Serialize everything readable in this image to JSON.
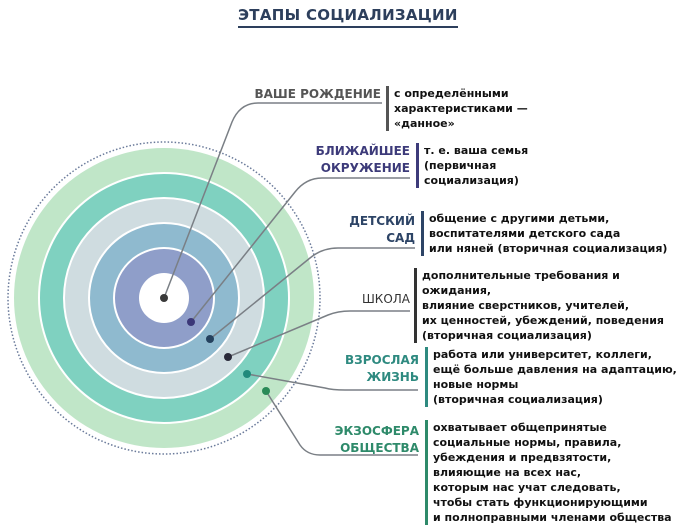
{
  "title": "ЭТАПЫ СОЦИАЛИЗАЦИИ",
  "colors": {
    "title": "#2d3f5c",
    "ring_outer": "#c0e6c8",
    "ring_teal": "#7fd1c0",
    "ring_gray": "#cfdce0",
    "ring_blue": "#8fbacf",
    "ring_purple": "#8f9ec9",
    "connector": "#7a7f85"
  },
  "stages": [
    {
      "label": "ВАШЕ РОЖДЕНИЕ",
      "description": "с определёнными\nхарактеристиками —\n«данное»",
      "color": "#555555"
    },
    {
      "label": "БЛИЖАЙШЕЕ\nОКРУЖЕНИЕ",
      "description": "т. е. ваша семья\n(первичная\nсоциализация)",
      "color": "#3d3b7a"
    },
    {
      "label": "ДЕТСКИЙ\nСАД",
      "description": "общение с другими детьми,\nвоспитателями детского сада\nили няней (вторичная социализация)",
      "color": "#2d4466"
    },
    {
      "label": "ШКОЛА",
      "description": "дополнительные требования и ожидания,\nвлияние сверстников, учителей,\nих ценностей, убеждений, поведения\n(вторичная социализация)",
      "color": "#333333"
    },
    {
      "label": "ВЗРОСЛАЯ\nЖИЗНЬ",
      "description": "работа или университет, коллеги,\nещё больше  давления на адаптацию,\nновые нормы\n(вторичная социализация)",
      "color": "#2e8a80"
    },
    {
      "label": "ЭКЗОСФЕРА\nОБЩЕСТВА",
      "description": "охватывает общепринятые\nсоциальные нормы, правила,\nубеждения и предвзятости,\nвлияющие на всех нас,\nкоторым нас учат следовать,\nчтобы стать функционирующими\nи полноправными членами общества",
      "color": "#2e8a6a"
    }
  ]
}
